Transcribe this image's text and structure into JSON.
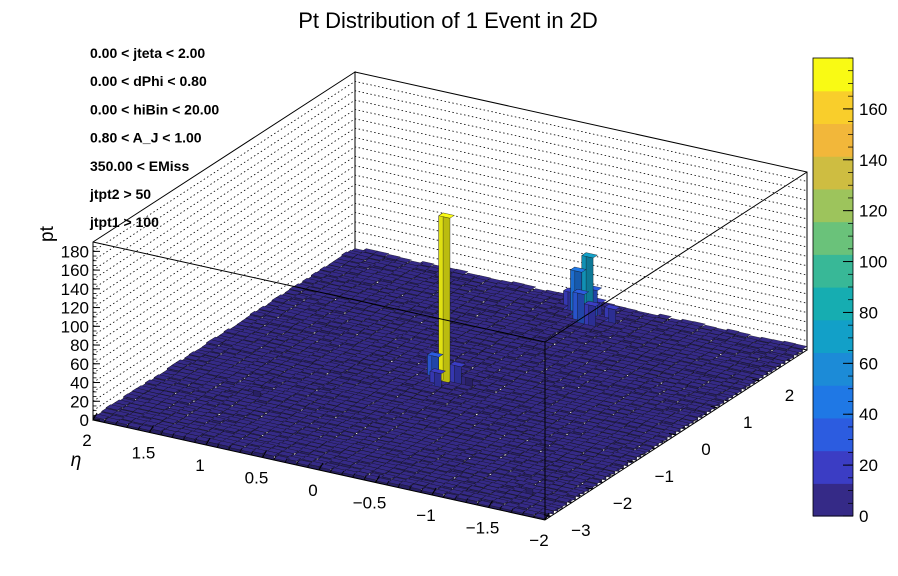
{
  "chart_data": {
    "type": "lego3d",
    "title": "Pt Distribution of 1 Event in 2D",
    "xlabel": "η",
    "ylabel": "",
    "zlabel": "pt",
    "x_ticks": [
      "2",
      "1.5",
      "1",
      "0.5",
      "0",
      "−0.5",
      "−1",
      "−1.5",
      "−2"
    ],
    "y_ticks": [
      "−3",
      "−2",
      "−1",
      "0",
      "1",
      "2"
    ],
    "z_ticks": [
      "0",
      "20",
      "40",
      "60",
      "80",
      "100",
      "120",
      "140",
      "160",
      "180"
    ],
    "xlim": [
      -2,
      2
    ],
    "ylim": [
      -3.14,
      3.14
    ],
    "zlim": [
      0,
      190
    ],
    "colorbar": {
      "ticks": [
        "0",
        "20",
        "40",
        "60",
        "80",
        "100",
        "120",
        "140",
        "160"
      ],
      "range": [
        0,
        180
      ],
      "palette": [
        "#352a87",
        "#3b3dc4",
        "#2c5ce0",
        "#1f78e5",
        "#1c8bd7",
        "#12a0c8",
        "#16adb1",
        "#38b897",
        "#6ac27a",
        "#9dc45c",
        "#cebd41",
        "#f2b73a",
        "#f9ce2b",
        "#f9fa14"
      ]
    },
    "cuts": [
      "0.00 < jteta < 2.00",
      "0.00 < dPhi < 0.80",
      "0.00 < hiBin < 20.00",
      "0.80 < A_J < 1.00",
      "350.00 < EMiss",
      "jtpt2 > 50",
      "jtpt1 > 100"
    ],
    "background_level": 3,
    "peaks": [
      {
        "eta": 0.05,
        "phi": 0.0,
        "pt": 178
      },
      {
        "eta": 0.15,
        "phi": 0.0,
        "pt": 27
      },
      {
        "eta": -0.05,
        "phi": 0.0,
        "pt": 22
      },
      {
        "eta": 0.05,
        "phi": 0.15,
        "pt": 15
      },
      {
        "eta": 0.05,
        "phi": -0.15,
        "pt": 18
      },
      {
        "eta": -0.15,
        "phi": 0.05,
        "pt": 12
      },
      {
        "eta": -0.2,
        "phi": 2.65,
        "pt": 68
      },
      {
        "eta": -0.1,
        "phi": 2.65,
        "pt": 50
      },
      {
        "eta": -0.3,
        "phi": 2.65,
        "pt": 42
      },
      {
        "eta": -0.2,
        "phi": 2.5,
        "pt": 35
      },
      {
        "eta": -0.2,
        "phi": 2.8,
        "pt": 30
      },
      {
        "eta": -0.35,
        "phi": 2.45,
        "pt": 25
      },
      {
        "eta": -0.05,
        "phi": 2.8,
        "pt": 22
      },
      {
        "eta": -0.45,
        "phi": 2.7,
        "pt": 18
      },
      {
        "eta": -0.3,
        "phi": 2.9,
        "pt": 14
      },
      {
        "eta": -1.6,
        "phi": -2.6,
        "pt": 10
      },
      {
        "eta": -1.5,
        "phi": -2.5,
        "pt": 8
      },
      {
        "eta": 1.2,
        "phi": -1.5,
        "pt": 9
      }
    ]
  }
}
